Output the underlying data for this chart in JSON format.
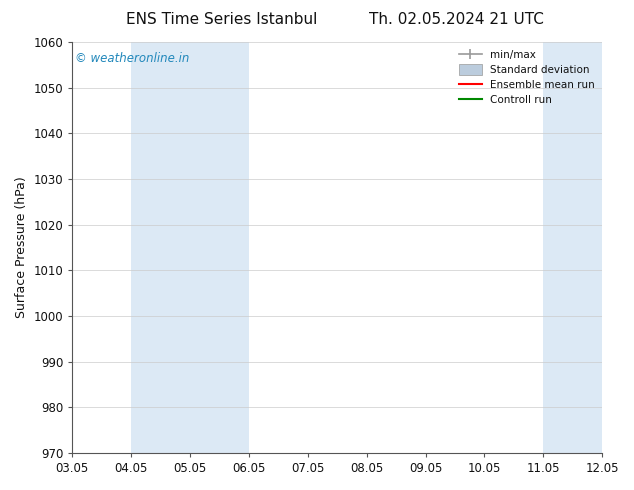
{
  "title_left": "ENS Time Series Istanbul",
  "title_right": "Th. 02.05.2024 21 UTC",
  "ylabel": "Surface Pressure (hPa)",
  "ylim": [
    970,
    1060
  ],
  "yticks": [
    970,
    980,
    990,
    1000,
    1010,
    1020,
    1030,
    1040,
    1050,
    1060
  ],
  "xtick_labels": [
    "03.05",
    "04.05",
    "05.05",
    "06.05",
    "07.05",
    "08.05",
    "09.05",
    "10.05",
    "11.05",
    "12.05"
  ],
  "bg_color": "#ffffff",
  "plot_bg_color": "#ffffff",
  "shaded_band_color": "#dce9f5",
  "watermark_text": "© weatheronline.in",
  "watermark_color": "#2288bb",
  "legend_labels": [
    "min/max",
    "Standard deviation",
    "Ensemble mean run",
    "Controll run"
  ],
  "legend_colors": [
    "#999999",
    "#bbccdd",
    "#ff0000",
    "#008800"
  ],
  "font_color": "#111111",
  "title_fontsize": 11,
  "axis_fontsize": 9,
  "tick_fontsize": 8.5
}
